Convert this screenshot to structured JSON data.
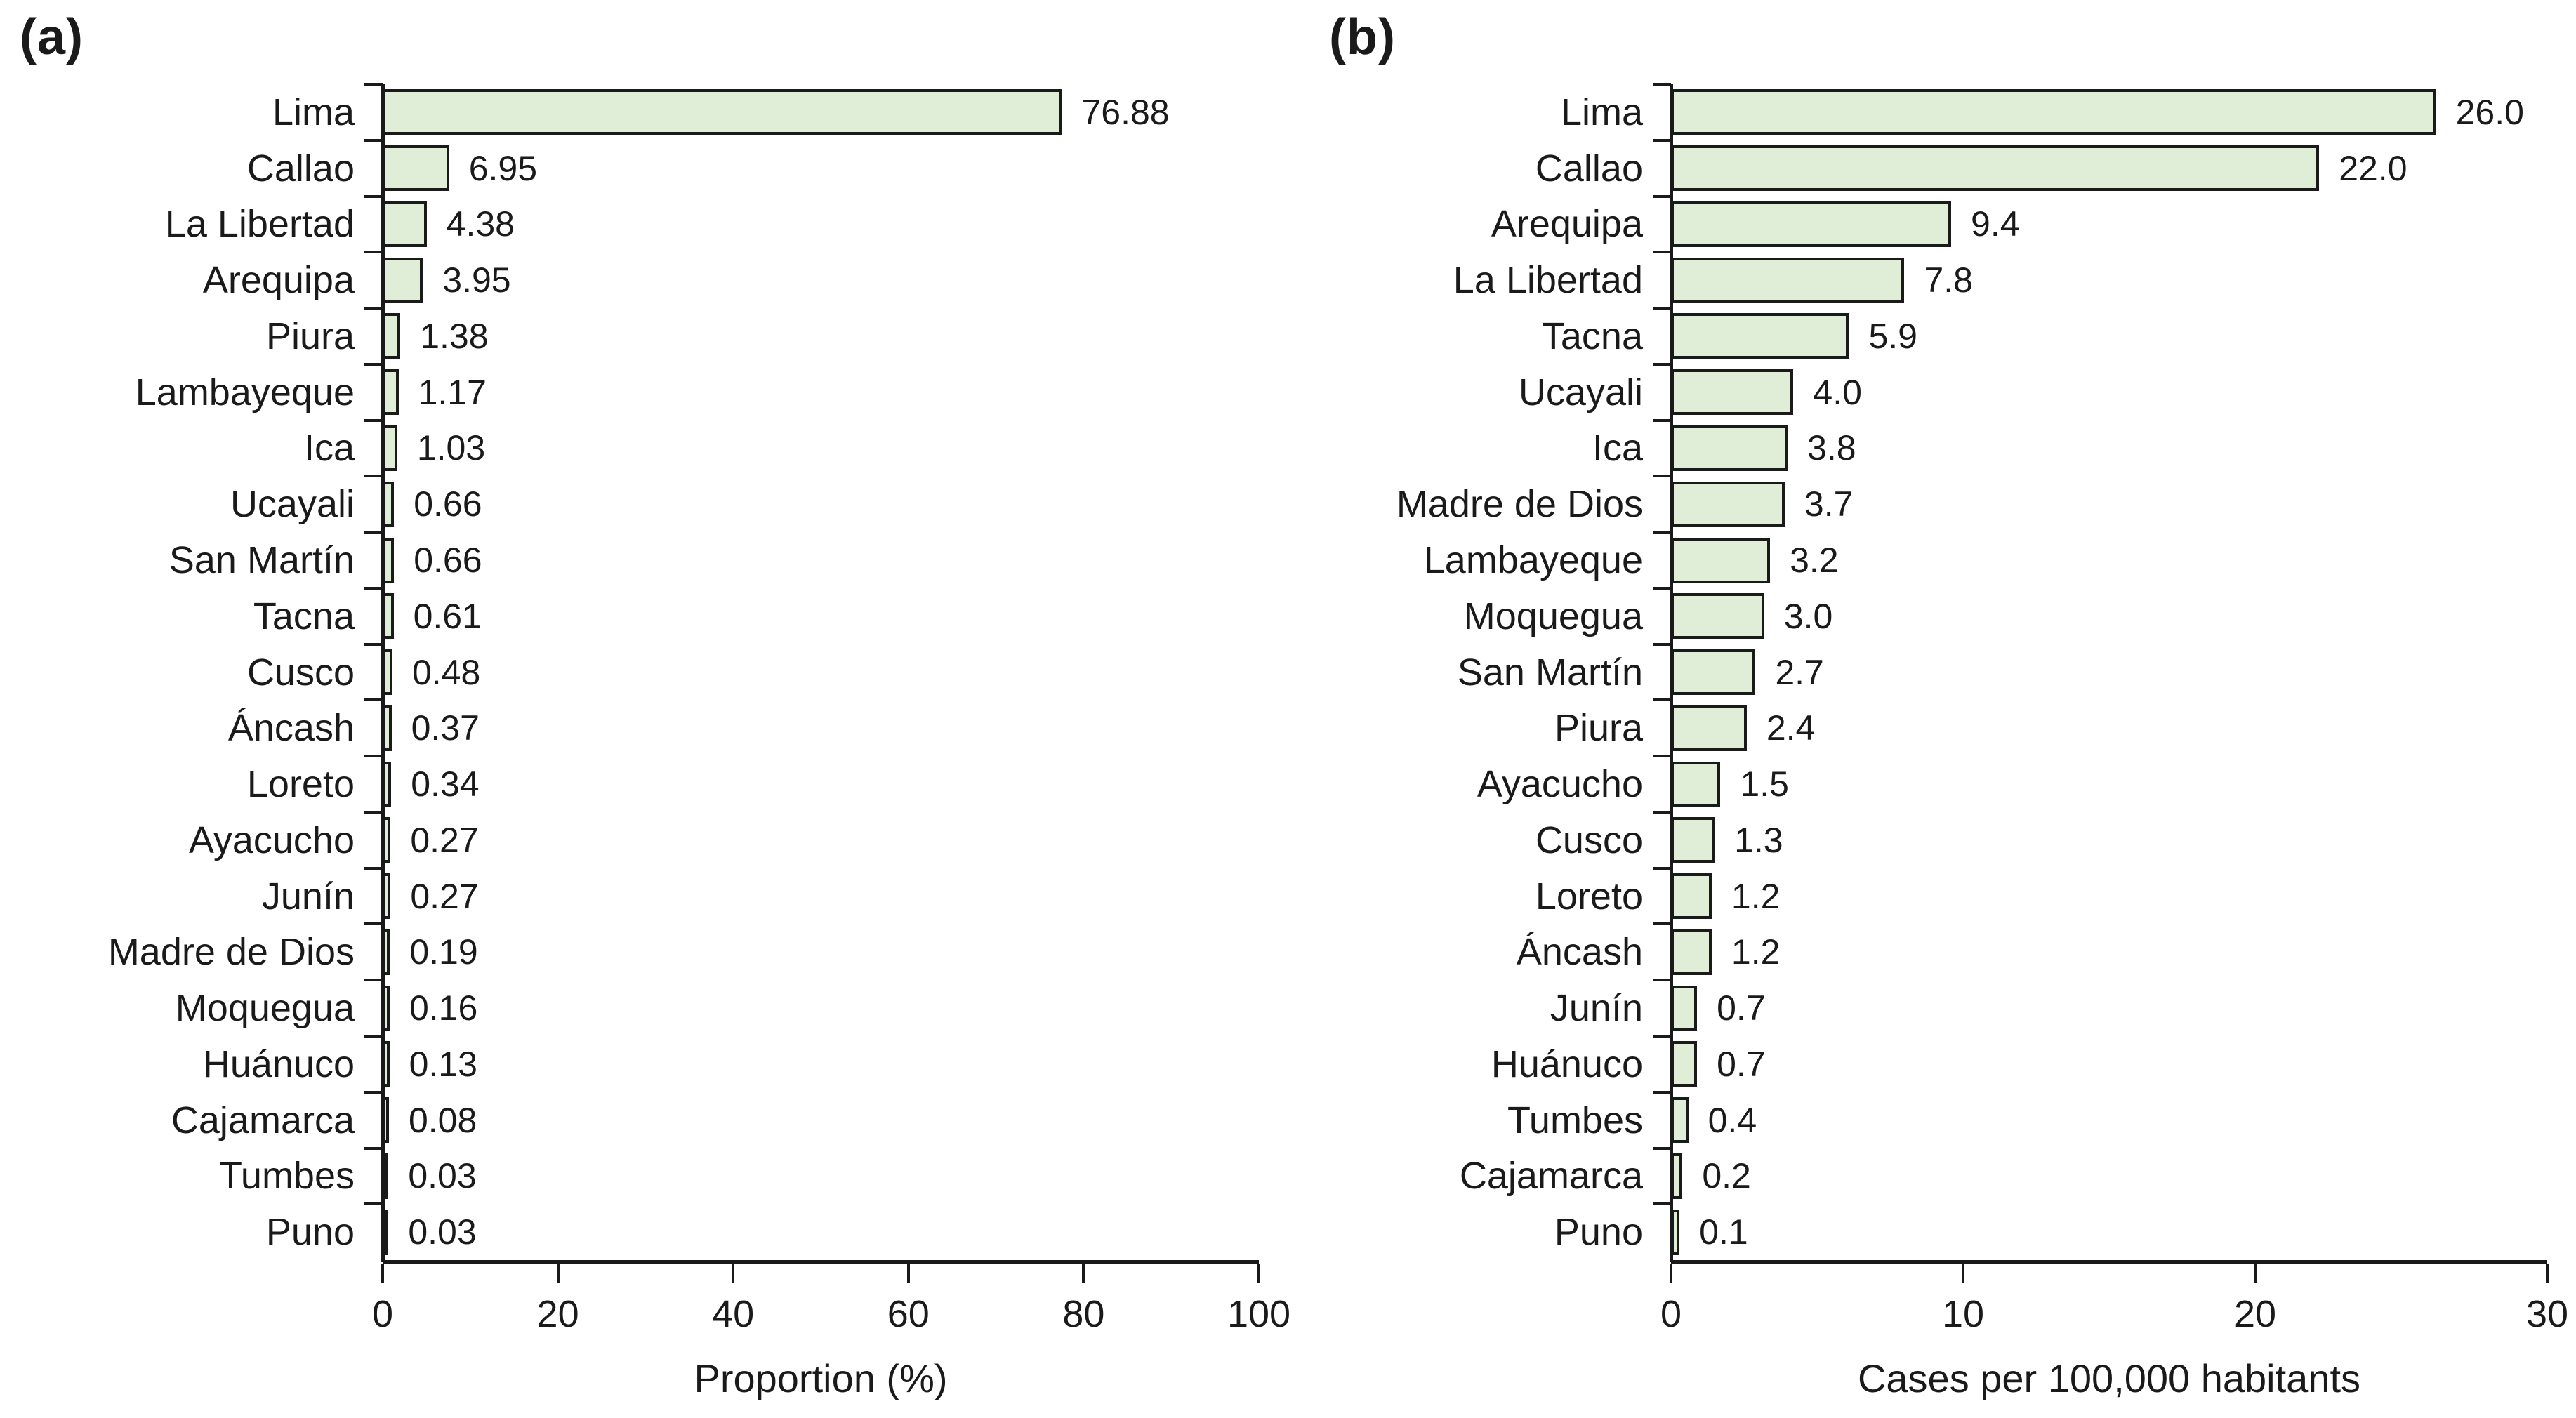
{
  "figure": {
    "background": "#ffffff",
    "text_color": "#1a1a1a",
    "axis_color": "#1a1a1a"
  },
  "chart_data": [
    {
      "type": "bar",
      "orientation": "horizontal",
      "title": "(a)",
      "categories": [
        "Lima",
        "Callao",
        "La Libertad",
        "Arequipa",
        "Piura",
        "Lambayeque",
        "Ica",
        "Ucayali",
        "San Martín",
        "Tacna",
        "Cusco",
        "Áncash",
        "Loreto",
        "Ayacucho",
        "Junín",
        "Madre de Dios",
        "Moquegua",
        "Huánuco",
        "Cajamarca",
        "Tumbes",
        "Puno"
      ],
      "values": [
        76.88,
        6.95,
        4.38,
        3.95,
        1.38,
        1.17,
        1.03,
        0.66,
        0.66,
        0.61,
        0.48,
        0.37,
        0.34,
        0.27,
        0.27,
        0.19,
        0.16,
        0.13,
        0.08,
        0.03,
        0.03
      ],
      "value_labels": [
        "76.88",
        "6.95",
        "4.38",
        "3.95",
        "1.38",
        "1.17",
        "1.03",
        "0.66",
        "0.66",
        "0.61",
        "0.48",
        "0.37",
        "0.34",
        "0.27",
        "0.27",
        "0.19",
        "0.16",
        "0.13",
        "0.08",
        "0.03",
        "0.03"
      ],
      "xlabel": "Proportion (%)",
      "xlim": [
        0,
        100
      ],
      "xticks": [
        0,
        20,
        40,
        60,
        80,
        100
      ],
      "grid": false,
      "legend": null,
      "bar_fill": "#e0eed8",
      "bar_border": "#1a1a1a"
    },
    {
      "type": "bar",
      "orientation": "horizontal",
      "title": "(b)",
      "categories": [
        "Lima",
        "Callao",
        "Arequipa",
        "La Libertad",
        "Tacna",
        "Ucayali",
        "Ica",
        "Madre de Dios",
        "Lambayeque",
        "Moquegua",
        "San Martín",
        "Piura",
        "Ayacucho",
        "Cusco",
        "Loreto",
        "Áncash",
        "Junín",
        "Huánuco",
        "Tumbes",
        "Cajamarca",
        "Puno"
      ],
      "values": [
        26.0,
        22.0,
        9.4,
        7.8,
        5.9,
        4.0,
        3.8,
        3.7,
        3.2,
        3.0,
        2.7,
        2.4,
        1.5,
        1.3,
        1.2,
        1.2,
        0.7,
        0.7,
        0.4,
        0.2,
        0.1
      ],
      "value_labels": [
        "26.0",
        "22.0",
        "9.4",
        "7.8",
        "5.9",
        "4.0",
        "3.8",
        "3.7",
        "3.2",
        "3.0",
        "2.7",
        "2.4",
        "1.5",
        "1.3",
        "1.2",
        "1.2",
        "0.7",
        "0.7",
        "0.4",
        "0.2",
        "0.1"
      ],
      "xlabel": "Cases per 100,000 habitants",
      "xlim": [
        0,
        30
      ],
      "xticks": [
        0,
        10,
        20,
        30
      ],
      "grid": false,
      "legend": null,
      "bar_fill": "#e0eed8",
      "bar_border": "#1a1a1a"
    }
  ]
}
